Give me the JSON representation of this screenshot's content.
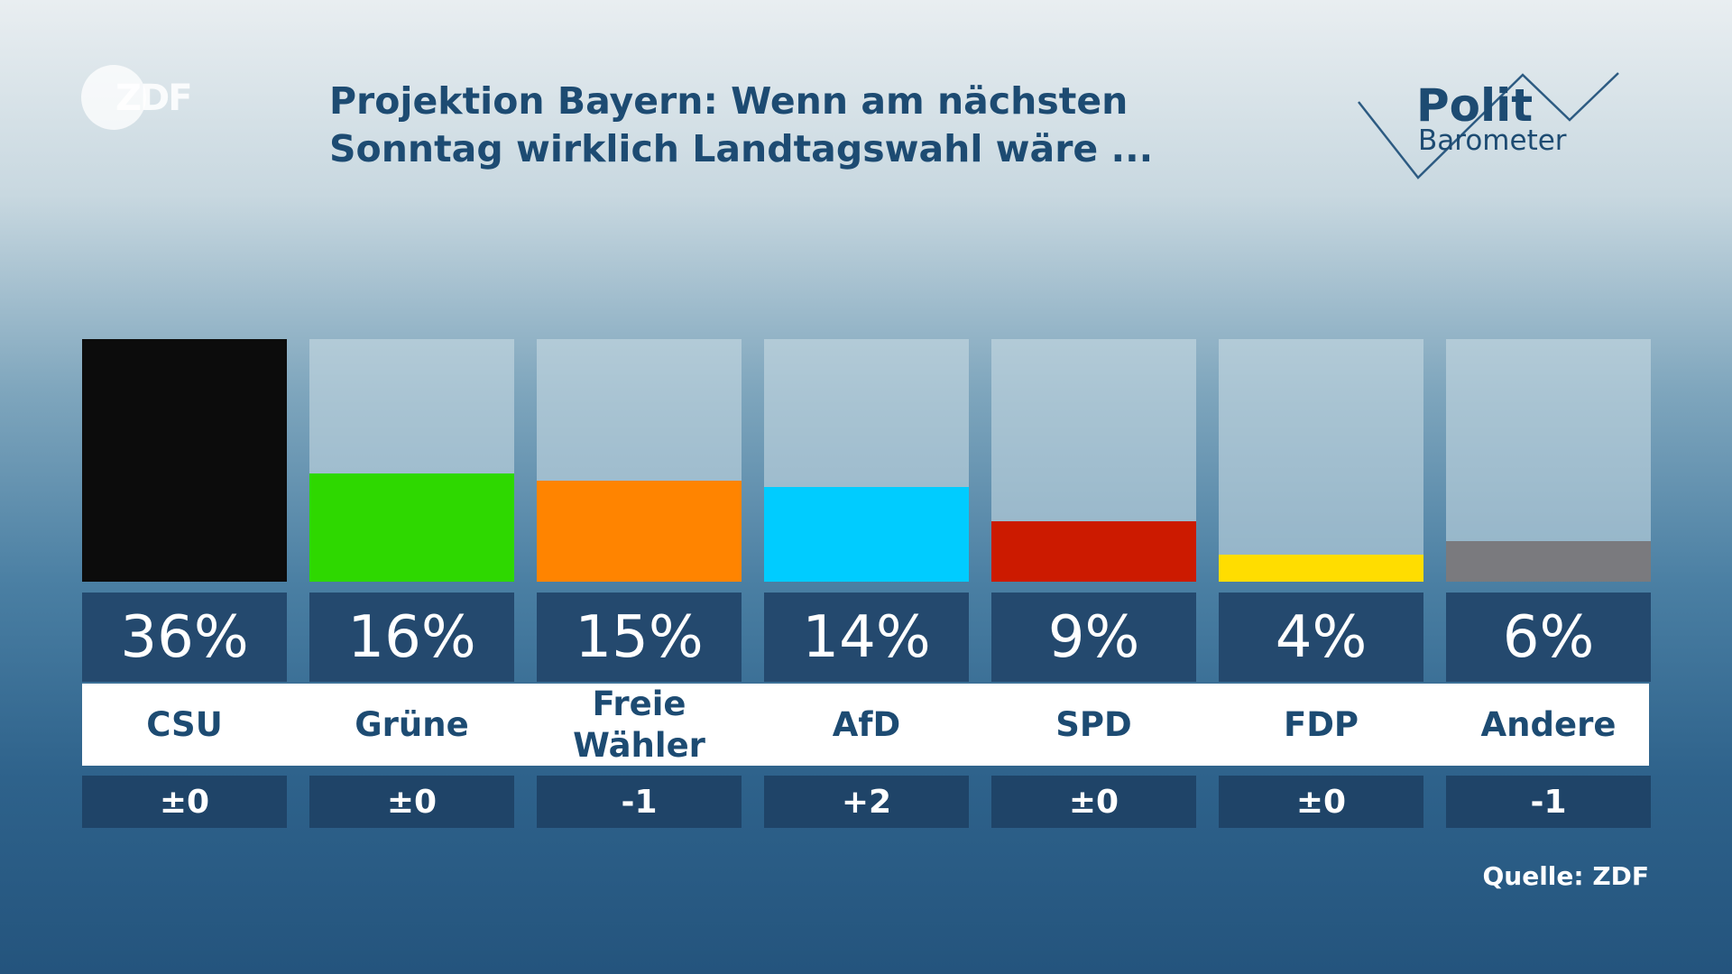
{
  "logo": "ZDF",
  "brand": {
    "line1": "Polit",
    "line2": "Barometer"
  },
  "chart_data": {
    "type": "bar",
    "title": "Projektion Bayern: Wenn am nächsten Sonntag wirklich Landtagswahl wäre ...",
    "categories": [
      "CSU",
      "Grüne",
      "Freie Wähler",
      "AfD",
      "SPD",
      "FDP",
      "Andere"
    ],
    "values": [
      36,
      16,
      15,
      14,
      9,
      4,
      6
    ],
    "value_labels": [
      "36%",
      "16%",
      "15%",
      "14%",
      "9%",
      "4%",
      "6%"
    ],
    "colors": [
      "#0c0c0c",
      "#2ed800",
      "#ff8400",
      "#00ccff",
      "#cc1a00",
      "#ffdd00",
      "#7a7a7e"
    ],
    "change_labels": [
      "±0",
      "±0",
      "-1",
      "+2",
      "±0",
      "±0",
      "-1"
    ],
    "ylim": [
      0,
      36
    ],
    "source": "Quelle: ZDF"
  }
}
